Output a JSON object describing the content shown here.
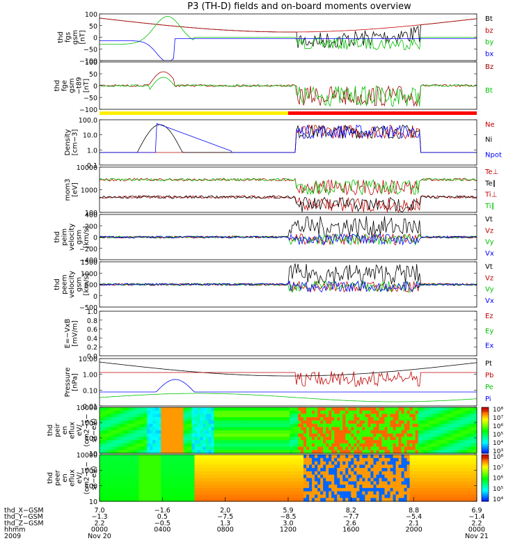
{
  "title": "P3 (TH-D) fields and on-board moments overview",
  "chart_data": [
    {
      "id": "fgs",
      "type": "line",
      "ylabel": [
        "thd",
        "fgs",
        "gsm",
        "[nT]"
      ],
      "ylim": [
        -100,
        100
      ],
      "yticks": [
        "100",
        "50",
        "0",
        "−50",
        "−100"
      ],
      "legend": [
        {
          "label": "Bt",
          "color": "#000000"
        },
        {
          "label": "bz",
          "color": "#c00000"
        },
        {
          "label": "by",
          "color": "#00c000"
        },
        {
          "label": "bx",
          "color": "#0000ff"
        }
      ]
    },
    {
      "id": "fge",
      "type": "line",
      "ylabel": [
        "thd",
        "fge",
        "gsm",
        "−t89",
        "[nT]"
      ],
      "ylim": [
        -125,
        100
      ],
      "yticks": [
        "100",
        "50",
        "0",
        "−50",
        "−100"
      ],
      "legend": [
        {
          "label": "Bz",
          "color": "#a00000"
        },
        {
          "label": "Bt",
          "color": "#00c000"
        }
      ]
    },
    {
      "id": "density",
      "type": "line",
      "ylabel": [
        "Density",
        "[cm−3]"
      ],
      "scale": "log",
      "yticks": [
        "100.0",
        "10.0",
        "1.0",
        "0.1"
      ],
      "legend": [
        {
          "label": "Ne",
          "color": "#c00000"
        },
        {
          "label": "Ni",
          "color": "#000000"
        },
        {
          "label": "Npot",
          "color": "#0000ff"
        }
      ]
    },
    {
      "id": "temperature",
      "type": "line",
      "ylabel": [
        "mom3",
        "[eV]"
      ],
      "scale": "log",
      "yticks": [
        "10000",
        "1000",
        "100"
      ],
      "legend": [
        {
          "label": "Te⊥",
          "color": "#c00000"
        },
        {
          "label": "Te∥",
          "color": "#000000"
        },
        {
          "label": "Ti⊥",
          "color": "#c00000"
        },
        {
          "label": "Ti∥",
          "color": "#00c000"
        }
      ]
    },
    {
      "id": "peim_velocity",
      "type": "line",
      "ylabel": [
        "thd",
        "peim",
        "velocity",
        "gsm",
        "[km/s]"
      ],
      "ylim": [
        -400,
        400
      ],
      "yticks": [
        "400",
        "200",
        "0",
        "−200",
        "−400"
      ],
      "legend": [
        {
          "label": "Vt",
          "color": "#000000"
        },
        {
          "label": "Vz",
          "color": "#c00000"
        },
        {
          "label": "Vy",
          "color": "#00c000"
        },
        {
          "label": "Vx",
          "color": "#0000ff"
        }
      ]
    },
    {
      "id": "peem_velocity",
      "type": "line",
      "ylabel": [
        "thd",
        "peem",
        "velocity",
        "gsm",
        "[km/s]"
      ],
      "ylim": [
        -1000,
        1500
      ],
      "yticks": [
        "1500",
        "1000",
        "500",
        "0",
        "−500"
      ],
      "legend": [
        {
          "label": "Vt",
          "color": "#000000"
        },
        {
          "label": "Vz",
          "color": "#c00000"
        },
        {
          "label": "Vy",
          "color": "#00c000"
        },
        {
          "label": "Vx",
          "color": "#0000ff"
        }
      ]
    },
    {
      "id": "efield",
      "type": "line",
      "ylabel": [
        "E=−VxB",
        "[mV/m]"
      ],
      "ylim": [
        0,
        1
      ],
      "yticks": [
        "1.0",
        "0.8",
        "0.6",
        "0.4",
        "0.2",
        "0.0"
      ],
      "legend": [
        {
          "label": "Ez",
          "color": "#c00000"
        },
        {
          "label": "Ey",
          "color": "#00c000"
        },
        {
          "label": "Ex",
          "color": "#0000ff"
        }
      ]
    },
    {
      "id": "pressure",
      "type": "line",
      "ylabel": [
        "Pressure",
        "[nPa]"
      ],
      "scale": "log",
      "yticks": [
        "10.00",
        "1.00",
        "0.10",
        "0.01"
      ],
      "legend": [
        {
          "label": "Pt",
          "color": "#000000"
        },
        {
          "label": "Pb",
          "color": "#c00000"
        },
        {
          "label": "Pe",
          "color": "#00c000"
        },
        {
          "label": "Pi",
          "color": "#0000ff"
        }
      ]
    },
    {
      "id": "peir_spectrogram",
      "type": "heatmap",
      "ylabel": [
        "thd",
        "peir",
        "en",
        "eflux",
        "eV/",
        "(cm2−s−",
        "sr−eV)"
      ],
      "scale": "log",
      "yticks": [
        "10000",
        "1000",
        "100",
        "10"
      ],
      "colorbar": [
        "10⁸",
        "10⁷",
        "10⁶",
        "10⁵",
        "10⁴",
        "10³"
      ]
    },
    {
      "id": "peer_spectrogram",
      "type": "heatmap",
      "ylabel": [
        "thd",
        "peer",
        "en",
        "eflux",
        "eV/",
        "(cm2−s−",
        "sr−eV)"
      ],
      "scale": "log",
      "yticks": [
        "10000",
        "1000",
        "100",
        "10"
      ],
      "colorbar": [
        "10⁸",
        "10⁷",
        "10⁶",
        "10⁵",
        "10⁴"
      ]
    }
  ],
  "xaxis": {
    "row_labels": [
      "thd_X−GSM",
      "thd_Y−GSM",
      "thd_Z−GSM",
      "hhmm",
      "2009"
    ],
    "columns": [
      [
        "7.0",
        "−1.3",
        "2.2",
        "0000",
        "Nov 20"
      ],
      [
        "−1.6",
        "0.5",
        "−0.5",
        "0400",
        ""
      ],
      [
        "2.0",
        "−7.5",
        "1.3",
        "0800",
        ""
      ],
      [
        "5.9",
        "−8.5",
        "3.0",
        "1200",
        ""
      ],
      [
        "8.2",
        "−7.7",
        "2.6",
        "1600",
        ""
      ],
      [
        "8.8",
        "−5.4",
        "2.1",
        "2000",
        ""
      ],
      [
        "6.9",
        "−1.4",
        "2.2",
        "0000",
        "Nov 21"
      ]
    ]
  }
}
